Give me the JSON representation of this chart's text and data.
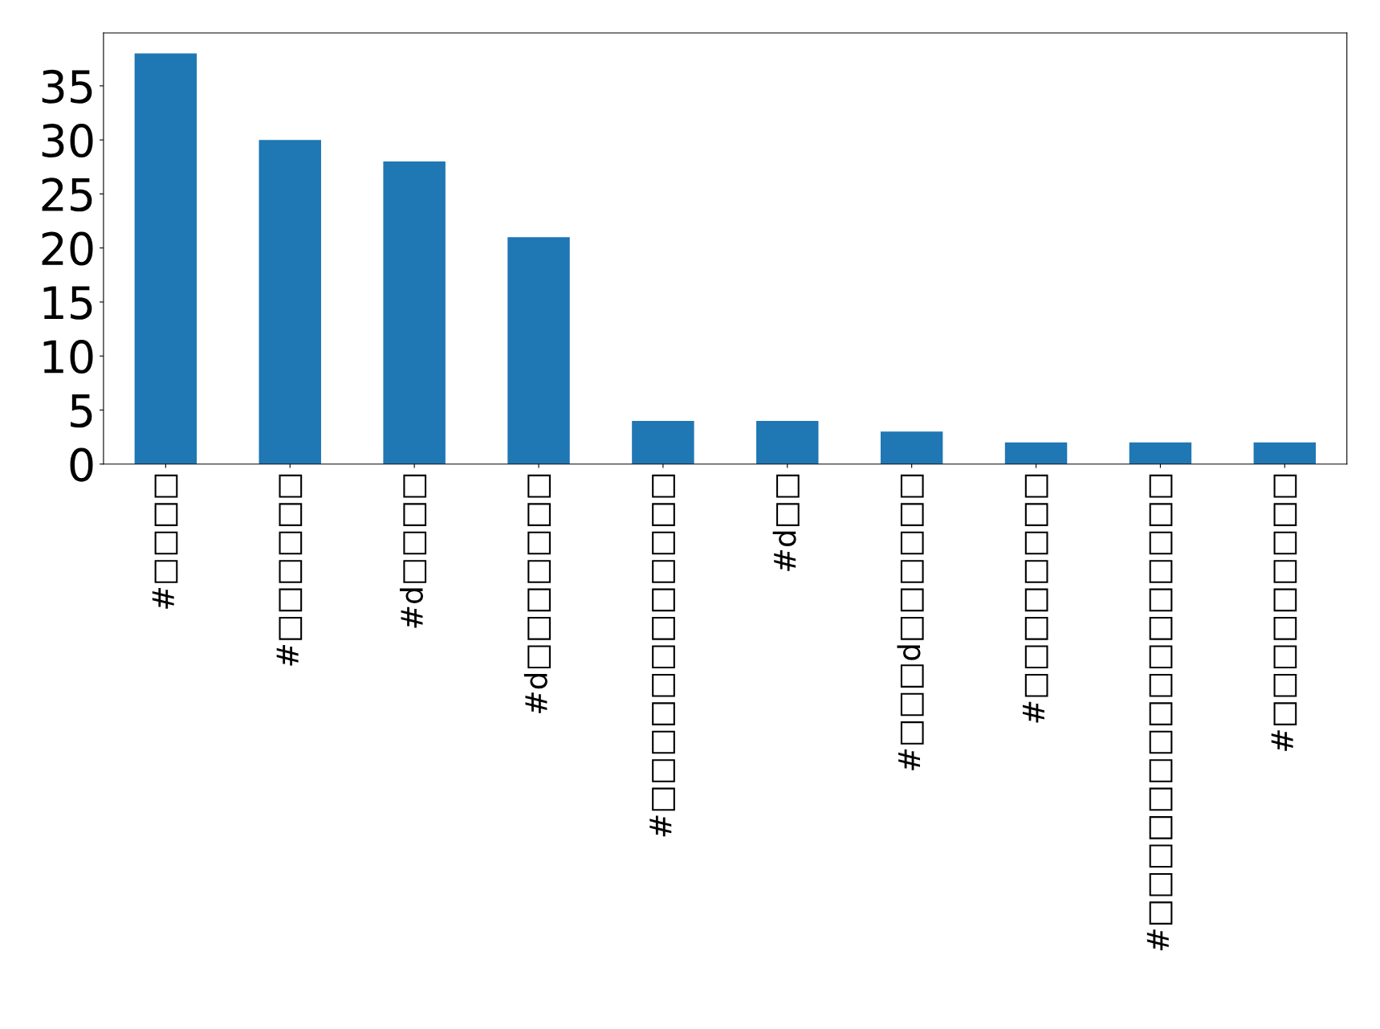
{
  "chart_data": {
    "type": "bar",
    "categories": [
      "#□□□□",
      "#□□□□□□",
      "#d□□□□",
      "#d□□□□□□□",
      "#□□□□□□□□□□□□",
      "#d□□",
      "#□□□d□□□□□□",
      "#□□□□□□□□",
      "#□□□□□□□□□□□□□□□□",
      "#□□□□□□□□□"
    ],
    "values": [
      38,
      30,
      28,
      21,
      4,
      4,
      3,
      2,
      2,
      2
    ],
    "color": "#1f77b4",
    "ylim": [
      0,
      39.9
    ],
    "yticks": [
      0,
      5,
      10,
      15,
      20,
      25,
      30,
      35
    ],
    "grid": false,
    "legend": false
  }
}
